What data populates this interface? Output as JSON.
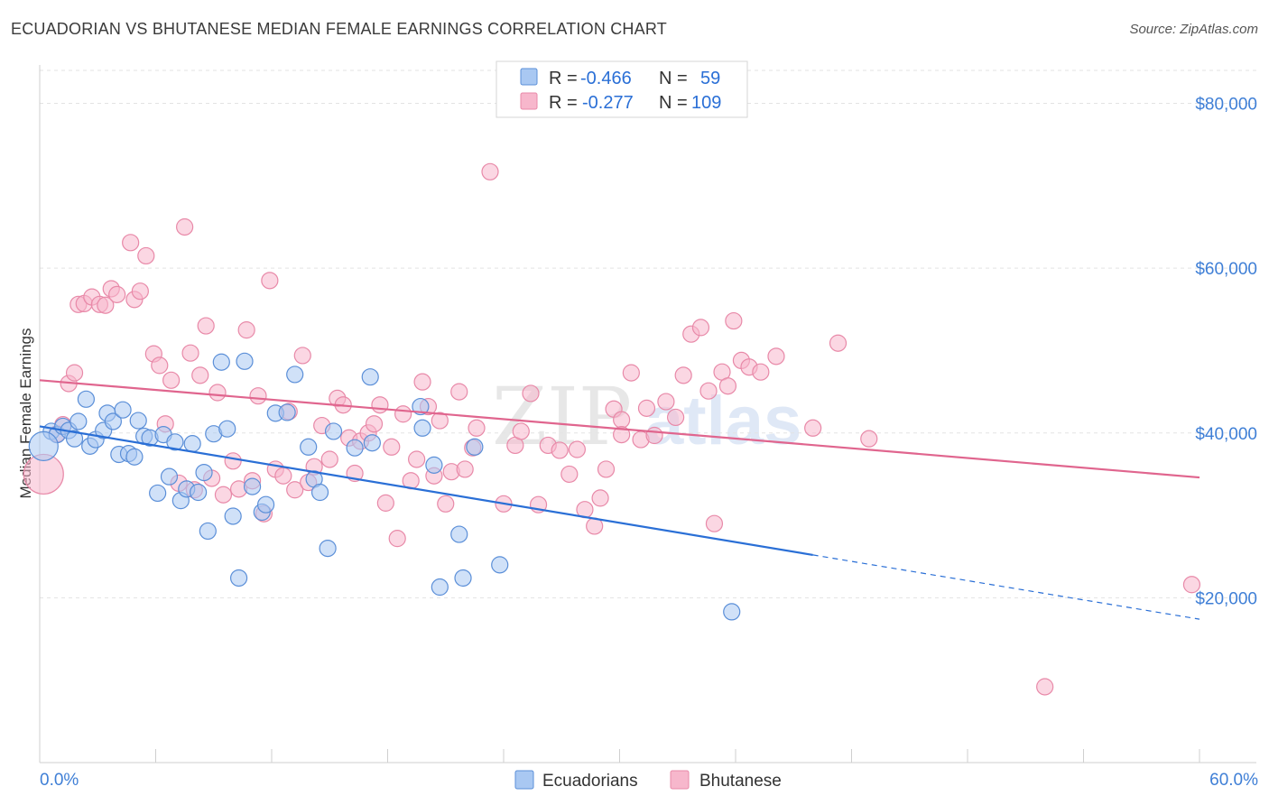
{
  "header": {
    "title": "ECUADORIAN VS BHUTANESE MEDIAN FEMALE EARNINGS CORRELATION CHART",
    "source": "Source: ZipAtlas.com"
  },
  "watermark": {
    "zip": "ZIP",
    "atlas": "atlas"
  },
  "colors": {
    "ecuadorians_fill": "#a9c8f2",
    "ecuadorians_stroke": "#5b8fd8",
    "ecuadorians_line": "#2a6fd6",
    "bhutanese_fill": "#f7b7cc",
    "bhutanese_stroke": "#e889a8",
    "bhutanese_line": "#e0658e",
    "tick_text": "#3f7fd6",
    "grid": "#e3e3e3"
  },
  "legend": {
    "rows": [
      {
        "r_label": "R =",
        "r_value": "-0.466",
        "n_label": "N =",
        "n_value": "59"
      },
      {
        "r_label": "R =",
        "r_value": "-0.277",
        "n_label": "N =",
        "n_value": "109"
      }
    ]
  },
  "chart_data": {
    "type": "scatter",
    "title": "ECUADORIAN VS BHUTANESE MEDIAN FEMALE EARNINGS CORRELATION CHART",
    "xlabel": "",
    "ylabel": "Median Female Earnings",
    "xlim": [
      0,
      60
    ],
    "ylim": [
      0,
      84000
    ],
    "x_tick_labels": [
      "0.0%",
      "60.0%"
    ],
    "y_ticks": [
      20000,
      40000,
      60000,
      80000
    ],
    "y_tick_labels": [
      "$20,000",
      "$40,000",
      "$60,000",
      "$80,000"
    ],
    "series": [
      {
        "name": "Ecuadorians",
        "R": -0.466,
        "N": 59,
        "trend": {
          "x0": 0,
          "y0": 40800,
          "x1": 40,
          "y1": 25200,
          "dash_to_x": 60,
          "dash_to_y": 17400
        },
        "points": [
          [
            0.6,
            40200
          ],
          [
            0.9,
            39800
          ],
          [
            1.2,
            40800
          ],
          [
            1.5,
            40300
          ],
          [
            1.8,
            39300
          ],
          [
            2.0,
            41400
          ],
          [
            2.4,
            44100
          ],
          [
            2.6,
            38400
          ],
          [
            2.9,
            39200
          ],
          [
            3.3,
            40300
          ],
          [
            3.5,
            42400
          ],
          [
            3.8,
            41400
          ],
          [
            4.1,
            37400
          ],
          [
            4.3,
            42800
          ],
          [
            4.6,
            37500
          ],
          [
            4.9,
            37100
          ],
          [
            5.1,
            41500
          ],
          [
            5.4,
            39600
          ],
          [
            5.7,
            39400
          ],
          [
            6.1,
            32700
          ],
          [
            6.4,
            39800
          ],
          [
            6.7,
            34700
          ],
          [
            7.0,
            38900
          ],
          [
            7.3,
            31800
          ],
          [
            7.6,
            33200
          ],
          [
            7.9,
            38700
          ],
          [
            8.2,
            32800
          ],
          [
            8.5,
            35200
          ],
          [
            8.7,
            28100
          ],
          [
            9.0,
            39900
          ],
          [
            9.4,
            48600
          ],
          [
            9.7,
            40500
          ],
          [
            10.0,
            29900
          ],
          [
            10.3,
            22400
          ],
          [
            10.6,
            48700
          ],
          [
            11.0,
            33500
          ],
          [
            11.5,
            30400
          ],
          [
            11.7,
            31300
          ],
          [
            12.2,
            42400
          ],
          [
            12.8,
            42500
          ],
          [
            13.2,
            47100
          ],
          [
            13.9,
            38300
          ],
          [
            14.2,
            34400
          ],
          [
            14.5,
            32800
          ],
          [
            14.9,
            26000
          ],
          [
            15.2,
            40200
          ],
          [
            16.3,
            38200
          ],
          [
            17.1,
            46800
          ],
          [
            17.2,
            38800
          ],
          [
            19.7,
            43200
          ],
          [
            19.8,
            40600
          ],
          [
            20.4,
            36100
          ],
          [
            20.7,
            21300
          ],
          [
            21.7,
            27700
          ],
          [
            21.9,
            22400
          ],
          [
            22.5,
            38300
          ],
          [
            23.8,
            24000
          ],
          [
            35.8,
            18300
          ],
          [
            0.2,
            38400
          ]
        ]
      },
      {
        "name": "Bhutanese",
        "R": -0.277,
        "N": 109,
        "trend": {
          "x0": 0,
          "y0": 46400,
          "x1": 60,
          "y1": 34600
        },
        "points": [
          [
            0.2,
            35000
          ],
          [
            0.9,
            39900
          ],
          [
            1.2,
            41000
          ],
          [
            1.5,
            46000
          ],
          [
            1.8,
            47300
          ],
          [
            2.0,
            55600
          ],
          [
            2.3,
            55700
          ],
          [
            2.7,
            56500
          ],
          [
            3.1,
            55600
          ],
          [
            3.4,
            55500
          ],
          [
            3.7,
            57500
          ],
          [
            4.0,
            56800
          ],
          [
            4.7,
            63100
          ],
          [
            4.9,
            56200
          ],
          [
            5.2,
            57200
          ],
          [
            5.5,
            61500
          ],
          [
            5.9,
            49600
          ],
          [
            6.2,
            48200
          ],
          [
            6.5,
            41100
          ],
          [
            6.8,
            46400
          ],
          [
            7.2,
            33900
          ],
          [
            7.5,
            65000
          ],
          [
            7.8,
            49700
          ],
          [
            8.0,
            33100
          ],
          [
            8.3,
            47000
          ],
          [
            8.6,
            53000
          ],
          [
            8.9,
            34500
          ],
          [
            9.2,
            44900
          ],
          [
            9.5,
            32500
          ],
          [
            10.0,
            36600
          ],
          [
            10.3,
            33200
          ],
          [
            10.7,
            52500
          ],
          [
            11.0,
            34200
          ],
          [
            11.3,
            44500
          ],
          [
            11.6,
            30200
          ],
          [
            11.9,
            58500
          ],
          [
            12.2,
            35600
          ],
          [
            12.6,
            34800
          ],
          [
            12.9,
            42600
          ],
          [
            13.2,
            33100
          ],
          [
            13.6,
            49400
          ],
          [
            13.9,
            34000
          ],
          [
            14.2,
            35900
          ],
          [
            14.6,
            40900
          ],
          [
            15.0,
            36800
          ],
          [
            15.4,
            44200
          ],
          [
            15.7,
            43400
          ],
          [
            16.0,
            39400
          ],
          [
            16.3,
            35100
          ],
          [
            16.6,
            39000
          ],
          [
            17.0,
            40000
          ],
          [
            17.3,
            41100
          ],
          [
            17.6,
            43400
          ],
          [
            17.9,
            31500
          ],
          [
            18.2,
            38300
          ],
          [
            18.5,
            27200
          ],
          [
            18.8,
            42300
          ],
          [
            19.2,
            34200
          ],
          [
            19.5,
            36800
          ],
          [
            19.8,
            46200
          ],
          [
            20.1,
            43200
          ],
          [
            20.4,
            34800
          ],
          [
            20.7,
            41500
          ],
          [
            21.0,
            31400
          ],
          [
            21.3,
            35300
          ],
          [
            21.7,
            45000
          ],
          [
            22.0,
            35600
          ],
          [
            22.4,
            38200
          ],
          [
            22.6,
            40600
          ],
          [
            23.3,
            71700
          ],
          [
            24.0,
            31400
          ],
          [
            24.6,
            38500
          ],
          [
            24.9,
            40200
          ],
          [
            25.4,
            44800
          ],
          [
            25.8,
            31300
          ],
          [
            26.3,
            38500
          ],
          [
            26.9,
            37900
          ],
          [
            27.4,
            35000
          ],
          [
            27.8,
            38000
          ],
          [
            28.2,
            30700
          ],
          [
            28.7,
            28700
          ],
          [
            29.0,
            32100
          ],
          [
            29.3,
            35600
          ],
          [
            29.7,
            42900
          ],
          [
            30.1,
            41600
          ],
          [
            30.6,
            47300
          ],
          [
            31.1,
            39200
          ],
          [
            31.4,
            43000
          ],
          [
            31.8,
            39700
          ],
          [
            32.4,
            43800
          ],
          [
            32.9,
            41900
          ],
          [
            33.3,
            47000
          ],
          [
            33.7,
            52000
          ],
          [
            34.2,
            52800
          ],
          [
            34.6,
            45100
          ],
          [
            34.9,
            29000
          ],
          [
            35.3,
            47400
          ],
          [
            35.6,
            45700
          ],
          [
            35.9,
            53600
          ],
          [
            36.3,
            48800
          ],
          [
            36.7,
            48000
          ],
          [
            37.3,
            47400
          ],
          [
            38.1,
            49300
          ],
          [
            40.0,
            40600
          ],
          [
            41.3,
            50900
          ],
          [
            42.9,
            39300
          ],
          [
            30.1,
            39800
          ],
          [
            52.0,
            9200
          ],
          [
            59.6,
            21600
          ]
        ]
      }
    ],
    "legend_labels": [
      "Ecuadorians",
      "Bhutanese"
    ]
  }
}
